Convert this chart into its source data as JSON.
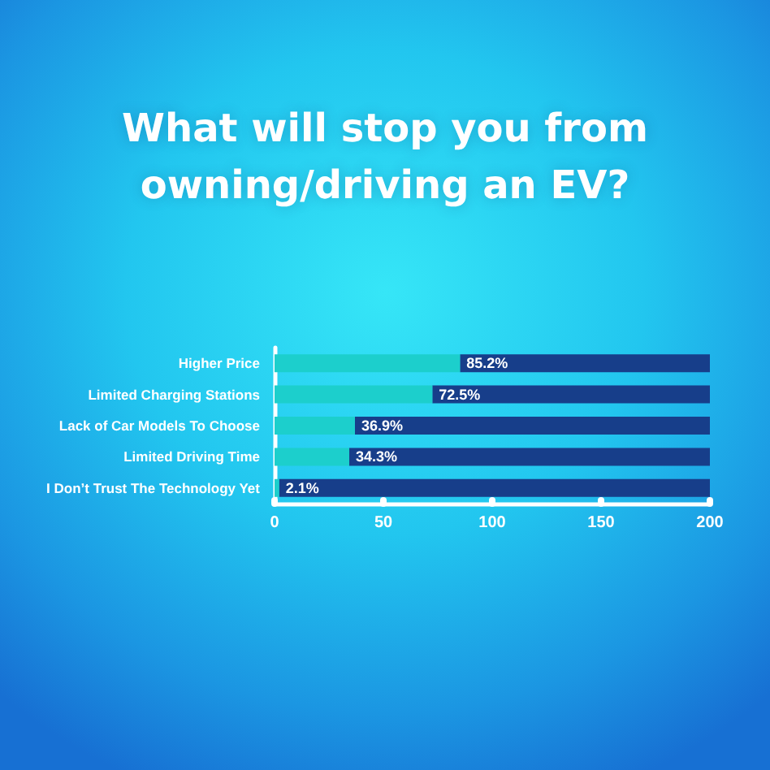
{
  "chart_data": {
    "type": "bar",
    "orientation": "horizontal",
    "stacked": true,
    "title": "What will stop you from owning/driving an EV?",
    "categories": [
      "Higher Price",
      "Limited Charging Stations",
      "Lack of Car Models To Choose",
      "Limited Driving Time",
      "I Don’t Trust The Technology Yet"
    ],
    "series": [
      {
        "color": "#1ccfcc",
        "values": [
          85.2,
          72.5,
          36.9,
          34.3,
          2.1
        ],
        "value_labels": [
          "85.2%",
          "72.5%",
          "36.9%",
          "34.3%",
          "2.1%"
        ]
      },
      {
        "color": "#173e8a",
        "values": [
          114.8,
          127.5,
          163.1,
          165.7,
          197.9
        ]
      }
    ],
    "xlim": [
      0,
      200
    ],
    "xticks": [
      0,
      50,
      100,
      150,
      200
    ]
  }
}
